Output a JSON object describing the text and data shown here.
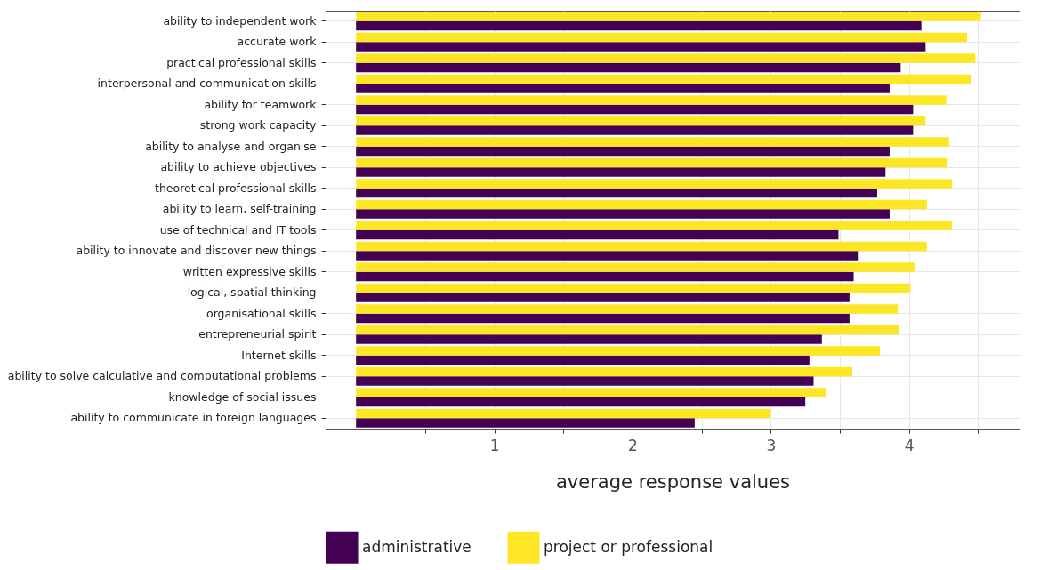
{
  "chart_data": {
    "type": "bar",
    "orientation": "horizontal",
    "xlabel": "average response values",
    "categories": [
      "ability to independent work",
      "accurate work",
      "practical professional skills",
      "interpersonal and communication skills",
      "ability for teamwork",
      "strong work capacity",
      "ability to analyse and organise",
      "ability to achieve objectives",
      "theoretical professional skills",
      "ability to learn, self-training",
      "use of technical and IT tools",
      "ability to innovate and discover new things",
      "written expressive skills",
      "logical, spatial thinking",
      "organisational skills",
      "entrepreneurial spirit",
      "Internet skills",
      "ability to solve calculative and computational problems",
      "knowledge of social issues",
      "ability to communicate in foreign languages"
    ],
    "series": [
      {
        "name": "administrative",
        "color": "#440154",
        "values": [
          4.09,
          4.12,
          3.94,
          3.86,
          4.03,
          4.03,
          3.86,
          3.83,
          3.77,
          3.86,
          3.49,
          3.63,
          3.6,
          3.57,
          3.57,
          3.37,
          3.28,
          3.31,
          3.25,
          2.45
        ]
      },
      {
        "name": "project or professional",
        "color": "#fde725",
        "values": [
          4.52,
          4.42,
          4.48,
          4.45,
          4.27,
          4.12,
          4.29,
          4.28,
          4.31,
          4.13,
          4.31,
          4.13,
          4.04,
          4.01,
          3.92,
          3.93,
          3.79,
          3.59,
          3.4,
          3.0
        ]
      }
    ],
    "xlim": [
      -0.22,
      4.8
    ],
    "xticks": [
      {
        "value": 0.5,
        "label": null
      },
      1,
      {
        "value": 1.5,
        "label": null
      },
      2,
      {
        "value": 2.5,
        "label": null
      },
      3,
      {
        "value": 3.5,
        "label": null
      },
      4,
      {
        "value": 4.5,
        "label": null
      }
    ],
    "grid": true,
    "legend": "bottom"
  }
}
